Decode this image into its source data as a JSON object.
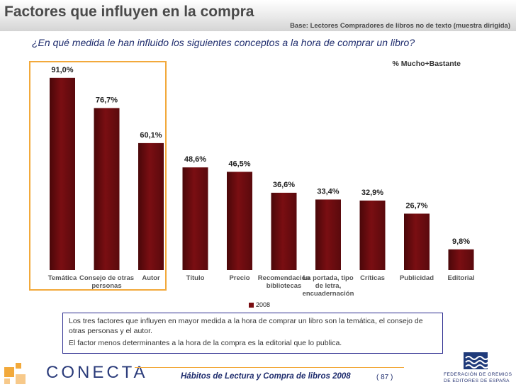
{
  "header": {
    "title": "Factores que influyen en la compra",
    "base": "Base: Lectores Compradores de libros no de texto (muestra dirigida)"
  },
  "question": "¿En qué medida le han influido los siguientes conceptos a la hora de comprar un libro?",
  "measure_label": "% Mucho+Bastante",
  "legend_label": "2008",
  "notes": [
    "Los tres factores que influyen en mayor medida a la hora de comprar un libro son la temática, el consejo de otras personas y el autor.",
    "El factor menos determinantes a la hora de la compra es la editorial que lo publica."
  ],
  "footer": {
    "publication": "Hábitos de Lectura y Compra de libros 2008",
    "page": "( 87 )",
    "logo_left": "CONECTA",
    "logo_right_line1": "FEDERACIÓN DE GREMIOS",
    "logo_right_line2": "DE EDITORES DE ESPAÑA"
  },
  "colors": {
    "bar": "#7a0e12",
    "highlight": "#f2a93b",
    "navy": "#1f2d6e"
  },
  "chart_data": {
    "type": "bar",
    "categories": [
      [
        "Temática"
      ],
      [
        "Consejo de otras",
        "personas"
      ],
      [
        "Autor"
      ],
      [
        "Título"
      ],
      [
        "Precio"
      ],
      [
        "Recomendación",
        "bibliotecas"
      ],
      [
        "La portada, tipo",
        "de letra,",
        "encuadernación"
      ],
      [
        "Críticas"
      ],
      [
        "Publicidad"
      ],
      [
        "Editorial"
      ]
    ],
    "series": [
      {
        "name": "2008",
        "values": [
          91.0,
          76.7,
          60.1,
          48.6,
          46.5,
          36.6,
          33.4,
          32.9,
          26.7,
          9.8
        ]
      }
    ],
    "value_labels": [
      "91,0%",
      "76,7%",
      "60,1%",
      "48,6%",
      "46,5%",
      "36,6%",
      "33,4%",
      "32,9%",
      "26,7%",
      "9,8%"
    ],
    "ylim": [
      0,
      100
    ],
    "grid": false,
    "legend_position": "bottom"
  }
}
